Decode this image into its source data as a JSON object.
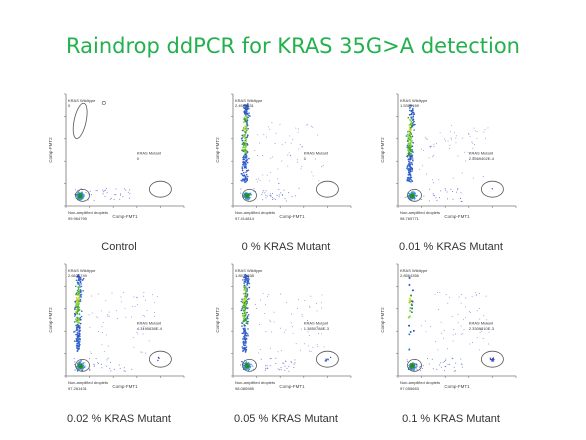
{
  "title": "Raindrop ddPCR for KRAS 35G>A detection",
  "colors": {
    "title": "#22b14c",
    "gate": "#555555",
    "dots": "#3b4cc0"
  },
  "chart_data": [
    {
      "type": "scatter",
      "caption": "Control",
      "mutant_percent": 0,
      "xlabel": "Comp-FMT1",
      "ylabel": "Comp-FMT2",
      "wildtype_label": "KRAS Wildtype",
      "wildtype_value": "0",
      "mutant_label": "KRAS Mutant",
      "mutant_value": "0",
      "neg_label": "Non-amplified droplets",
      "neg_value": "99.964795"
    },
    {
      "type": "scatter",
      "caption": "0 % KRAS Mutant",
      "mutant_percent": 0,
      "xlabel": "Comp-FMT1",
      "ylabel": "Comp-FMT2",
      "wildtype_label": "KRAS Wildtype",
      "wildtype_value": "2.4589631",
      "mutant_label": "KRAS Mutant",
      "mutant_value": "0",
      "neg_label": "Non-amplified droplets",
      "neg_value": "97.414814"
    },
    {
      "type": "scatter",
      "caption": "0.01 % KRAS Mutant",
      "mutant_percent": 0.01,
      "xlabel": "Comp-FMT1",
      "ylabel": "Comp-FMT2",
      "wildtype_label": "KRAS Wildtype",
      "wildtype_value": "1.5386169",
      "mutant_label": "KRAS Mutant",
      "mutant_value": "2.5569402E-4",
      "neg_label": "Non-amplified droplets",
      "neg_value": "98.769771"
    },
    {
      "type": "scatter",
      "caption": "0.02 % KRAS Mutant",
      "mutant_percent": 0.02,
      "xlabel": "Comp-FMT1",
      "ylabel": "Comp-FMT2",
      "wildtype_label": "KRAS Wildtype",
      "wildtype_value": "2.6637749",
      "mutant_label": "KRAS Mutant",
      "mutant_value": "4.3190638E-4",
      "neg_label": "Non-amplified droplets",
      "neg_value": "97.281431"
    },
    {
      "type": "scatter",
      "caption": "0.05 % KRAS Mutant",
      "mutant_percent": 0.05,
      "xlabel": "Comp-FMT1",
      "ylabel": "Comp-FMT2",
      "wildtype_label": "KRAS Wildtype",
      "wildtype_value": "1.8571938",
      "mutant_label": "KRAS Mutant",
      "mutant_value": "1.3850788E-3",
      "neg_label": "Non-amplified droplets",
      "neg_value": "98.080985"
    },
    {
      "type": "scatter",
      "caption": "0.1 % KRAS Mutant",
      "mutant_percent": 0.1,
      "xlabel": "Comp-FMT1",
      "ylabel": "Comp-FMT2",
      "wildtype_label": "KRAS Wildtype",
      "wildtype_value": "2.8564356",
      "mutant_label": "KRAS Mutant",
      "mutant_value": "2.3309810E-3",
      "neg_label": "Non-amplified droplets",
      "neg_value": "97.055663"
    }
  ]
}
